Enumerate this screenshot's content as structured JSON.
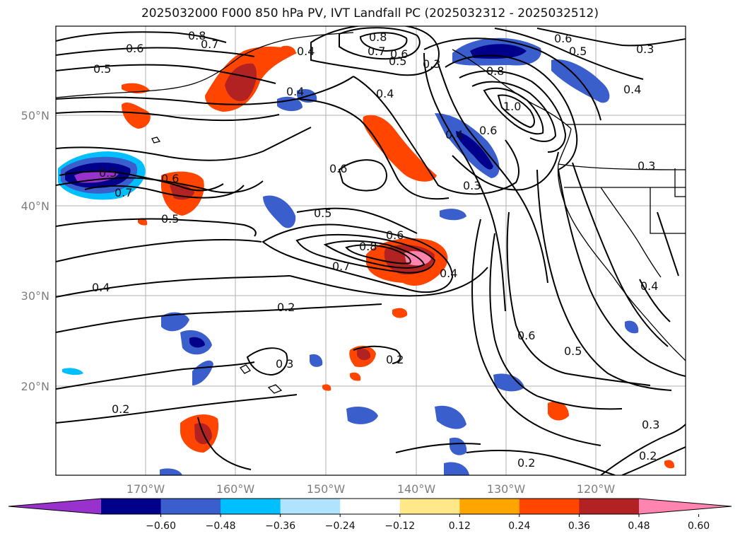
{
  "title": "2025032000 F000 850 hPa PV, IVT Landfall PC (2025032312 - 2025032512)",
  "map": {
    "lon_ticks": [
      "170°W",
      "160°W",
      "150°W",
      "140°W",
      "130°W",
      "120°W"
    ],
    "lat_ticks": [
      "50°N",
      "40°N",
      "30°N",
      "20°N"
    ],
    "contour_labels": [
      "0.8",
      "0.7",
      "0.6",
      "0.5",
      "0.4",
      "0.8",
      "0.7",
      "0.6",
      "0.5",
      "0.3",
      "0.6",
      "0.5",
      "0.3",
      "0.4",
      "0.4",
      "0.8",
      "0.4",
      "1.0",
      "0.6",
      "0.4",
      "0.3",
      "0.5",
      "0.6",
      "0.7",
      "0.6",
      "0.3",
      "0.5",
      "0.5",
      "0.8",
      "0.6",
      "0.7",
      "0.4",
      "0.4",
      "0.2",
      "0.2",
      "0.3",
      "0.2",
      "0.6",
      "0.5",
      "0.3",
      "0.2",
      "0.2",
      "0.4"
    ],
    "colors": {
      "land_line": "#000000",
      "contour": "#000000",
      "grid": "#b0b0b0"
    }
  },
  "colorbar": {
    "ticks": [
      "−0.60",
      "−0.48",
      "−0.36",
      "−0.24",
      "−0.12",
      "0.12",
      "0.24",
      "0.36",
      "0.48",
      "0.60"
    ],
    "colors": [
      "#9932cc",
      "#00008b",
      "#3a5fcd",
      "#00bfff",
      "#afe3ff",
      "#ffffff",
      "#ffe88a",
      "#ffa500",
      "#ff4500",
      "#b22222",
      "#ff85b0"
    ]
  }
}
